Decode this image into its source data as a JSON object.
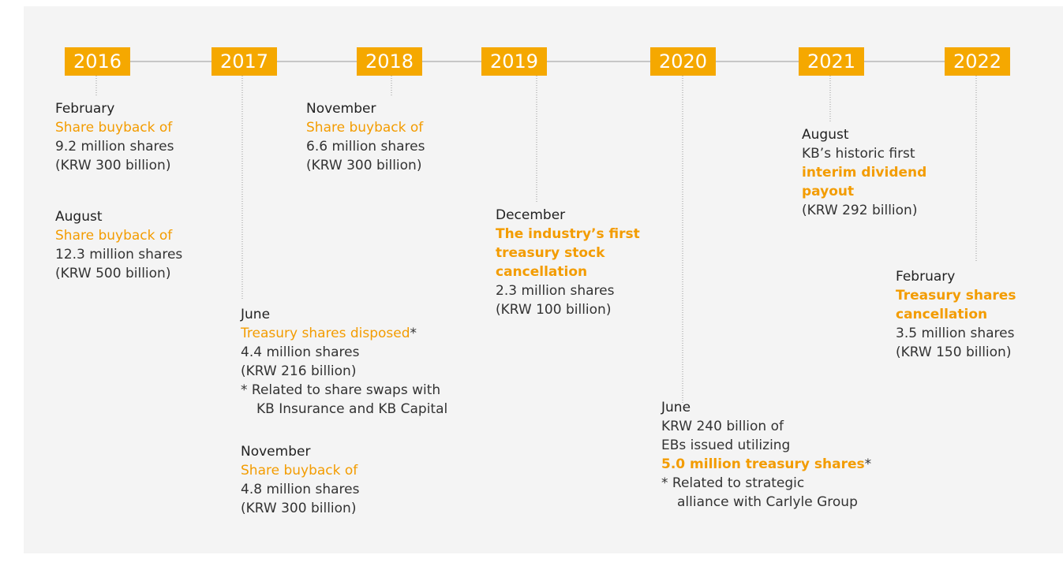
{
  "timeline": [
    {
      "year": "2016",
      "events": [
        {
          "month": "February",
          "lines": [
            [
              {
                "text": "Share buyback of",
                "accent": true
              }
            ],
            [
              {
                "text": "9.2 million shares"
              }
            ],
            [
              {
                "text": "(KRW 300 billion)"
              }
            ]
          ]
        },
        {
          "month": "August",
          "lines": [
            [
              {
                "text": "Share buyback of",
                "accent": true
              }
            ],
            [
              {
                "text": "12.3 million shares"
              }
            ],
            [
              {
                "text": "(KRW 500 billion)"
              }
            ]
          ]
        }
      ]
    },
    {
      "year": "2017",
      "events": [
        {
          "month": "June",
          "lines": [
            [
              {
                "text": "Treasury shares disposed",
                "accent": true
              },
              {
                "text": "*"
              }
            ],
            [
              {
                "text": "4.4 million shares"
              }
            ],
            [
              {
                "text": "(KRW 216 billion)"
              }
            ]
          ],
          "note": [
            "* Related to share swaps with",
            "KB Insurance and KB Capital"
          ]
        },
        {
          "month": "November",
          "lines": [
            [
              {
                "text": "Share buyback of",
                "accent": true
              }
            ],
            [
              {
                "text": "4.8 million shares"
              }
            ],
            [
              {
                "text": "(KRW 300 billion)"
              }
            ]
          ]
        }
      ]
    },
    {
      "year": "2018",
      "events": [
        {
          "month": "November",
          "lines": [
            [
              {
                "text": "Share buyback of",
                "accent": true
              }
            ],
            [
              {
                "text": "6.6 million shares"
              }
            ],
            [
              {
                "text": "(KRW 300 billion)"
              }
            ]
          ]
        }
      ]
    },
    {
      "year": "2019",
      "events": [
        {
          "month": "December",
          "lines": [
            [
              {
                "text": "The industry’s first",
                "accent": true,
                "bold": true
              }
            ],
            [
              {
                "text": "treasury stock",
                "accent": true,
                "bold": true
              }
            ],
            [
              {
                "text": "cancellation",
                "accent": true,
                "bold": true
              }
            ],
            [
              {
                "text": "2.3 million shares"
              }
            ],
            [
              {
                "text": "(KRW 100 billion)"
              }
            ]
          ]
        }
      ]
    },
    {
      "year": "2020",
      "events": [
        {
          "month": "June",
          "lines": [
            [
              {
                "text": "KRW 240 billion of"
              }
            ],
            [
              {
                "text": "EBs issued utilizing"
              }
            ],
            [
              {
                "text": "5.0 million treasury shares",
                "accent": true,
                "bold": true
              },
              {
                "text": "*"
              }
            ]
          ],
          "note": [
            "* Related to strategic",
            "alliance with Carlyle Group"
          ]
        }
      ]
    },
    {
      "year": "2021",
      "events": [
        {
          "month": "August",
          "lines": [
            [
              {
                "text": "KB’s historic first"
              }
            ],
            [
              {
                "text": "interim dividend",
                "accent": true,
                "bold": true
              }
            ],
            [
              {
                "text": "payout",
                "accent": true,
                "bold": true
              }
            ],
            [
              {
                "text": "(KRW 292 billion)"
              }
            ]
          ]
        }
      ]
    },
    {
      "year": "2022",
      "events": [
        {
          "month": "February",
          "lines": [
            [
              {
                "text": "Treasury shares",
                "accent": true,
                "bold": true
              }
            ],
            [
              {
                "text": "cancellation",
                "accent": true,
                "bold": true
              }
            ],
            [
              {
                "text": "3.5 million shares"
              }
            ],
            [
              {
                "text": "(KRW 150 billion)"
              }
            ]
          ]
        }
      ]
    }
  ]
}
